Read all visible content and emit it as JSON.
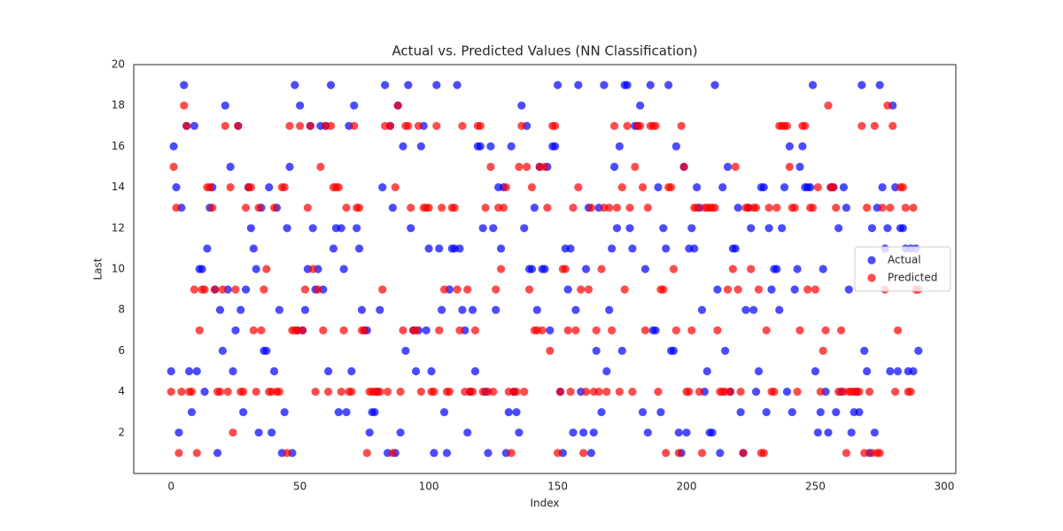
{
  "chart_data": {
    "type": "scatter",
    "title": "Actual vs. Predicted Values (NN Classification)",
    "x_label": "Index",
    "y_label": "Last",
    "xlim": [
      -14.5,
      304.5
    ],
    "ylim": [
      0,
      20
    ],
    "xticks": [
      0,
      50,
      100,
      150,
      200,
      250,
      300
    ],
    "yticks": [
      2,
      4,
      6,
      8,
      10,
      12,
      14,
      16,
      18,
      20
    ],
    "grid": false,
    "legend": "center right",
    "x": [
      0,
      1,
      2,
      3,
      4,
      5,
      6,
      7,
      8,
      9,
      10,
      11,
      12,
      13,
      14,
      15,
      16,
      17,
      18,
      19,
      20,
      21,
      22,
      23,
      24,
      25,
      26,
      27,
      28,
      29,
      30,
      31,
      32,
      33,
      34,
      35,
      36,
      37,
      38,
      39,
      40,
      41,
      42,
      43,
      44,
      45,
      46,
      47,
      48,
      49,
      50,
      51,
      52,
      53,
      54,
      55,
      56,
      57,
      58,
      59,
      60,
      61,
      62,
      63,
      64,
      65,
      66,
      67,
      68,
      69,
      70,
      71,
      72,
      73,
      74,
      75,
      76,
      77,
      78,
      79,
      80,
      81,
      82,
      83,
      84,
      85,
      86,
      87,
      88,
      89,
      90,
      91,
      92,
      93,
      94,
      95,
      96,
      97,
      98,
      99,
      100,
      101,
      102,
      103,
      104,
      105,
      106,
      107,
      108,
      109,
      110,
      111,
      112,
      113,
      114,
      115,
      116,
      117,
      118,
      119,
      120,
      121,
      122,
      123,
      124,
      125,
      126,
      127,
      128,
      129,
      130,
      131,
      132,
      133,
      134,
      135,
      136,
      137,
      138,
      139,
      140,
      141,
      142,
      143,
      144,
      145,
      146,
      147,
      148,
      149,
      150,
      151,
      152,
      153,
      154,
      155,
      156,
      157,
      158,
      159,
      160,
      161,
      162,
      163,
      164,
      165,
      166,
      167,
      168,
      169,
      170,
      171,
      172,
      173,
      174,
      175,
      176,
      177,
      178,
      179,
      180,
      181,
      182,
      183,
      184,
      185,
      186,
      187,
      188,
      189,
      190,
      191,
      192,
      193,
      194,
      195,
      196,
      197,
      198,
      199,
      200,
      201,
      202,
      203,
      204,
      205,
      206,
      207,
      208,
      209,
      210,
      211,
      212,
      213,
      214,
      215,
      216,
      217,
      218,
      219,
      220,
      221,
      222,
      223,
      224,
      225,
      226,
      227,
      228,
      229,
      230,
      231,
      232,
      233,
      234,
      235,
      236,
      237,
      238,
      239,
      240,
      241,
      242,
      243,
      244,
      245,
      246,
      247,
      248,
      249,
      250,
      251,
      252,
      253,
      254,
      255,
      256,
      257,
      258,
      259,
      260,
      261,
      262,
      263,
      264,
      265,
      266,
      267,
      268,
      269,
      270,
      271,
      272,
      273,
      274,
      275,
      276,
      277,
      278,
      279,
      280,
      281,
      282,
      283,
      284,
      285,
      286,
      287,
      288,
      289,
      290
    ],
    "series": [
      {
        "name": "Actual",
        "color": "#0000ff",
        "values": [
          5,
          16,
          14,
          2,
          13,
          19,
          17,
          5,
          3,
          17,
          5,
          10,
          10,
          4,
          11,
          13,
          14,
          9,
          1,
          8,
          6,
          18,
          9,
          15,
          5,
          7,
          17,
          8,
          3,
          9,
          14,
          12,
          11,
          10,
          2,
          13,
          6,
          6,
          14,
          2,
          5,
          13,
          8,
          1,
          3,
          12,
          15,
          1,
          19,
          7,
          18,
          7,
          8,
          10,
          17,
          12,
          9,
          10,
          17,
          9,
          17,
          5,
          19,
          11,
          12,
          3,
          12,
          10,
          3,
          17,
          5,
          18,
          12,
          11,
          8,
          7,
          7,
          2,
          3,
          3,
          4,
          8,
          14,
          19,
          1,
          17,
          13,
          1,
          18,
          2,
          16,
          6,
          19,
          12,
          7,
          5,
          7,
          16,
          17,
          7,
          11,
          5,
          1,
          19,
          11,
          8,
          3,
          1,
          9,
          11,
          11,
          19,
          11,
          8,
          7,
          2,
          4,
          8,
          5,
          16,
          16,
          12,
          4,
          1,
          16,
          12,
          8,
          14,
          11,
          14,
          1,
          3,
          16,
          4,
          3,
          2,
          18,
          12,
          17,
          10,
          10,
          13,
          8,
          15,
          10,
          10,
          15,
          7,
          16,
          16,
          19,
          4,
          1,
          11,
          9,
          11,
          2,
          8,
          19,
          4,
          2,
          10,
          13,
          1,
          2,
          6,
          13,
          3,
          19,
          5,
          8,
          11,
          15,
          12,
          16,
          6,
          19,
          19,
          12,
          11,
          17,
          17,
          18,
          3,
          10,
          2,
          19,
          7,
          7,
          14,
          3,
          12,
          11,
          19,
          6,
          6,
          16,
          2,
          1,
          15,
          2,
          11,
          12,
          11,
          14,
          13,
          8,
          4,
          5,
          2,
          2,
          19,
          9,
          1,
          14,
          6,
          15,
          4,
          11,
          11,
          13,
          3,
          1,
          8,
          13,
          12,
          8,
          4,
          5,
          14,
          14,
          3,
          12,
          9,
          10,
          10,
          8,
          12,
          14,
          4,
          16,
          3,
          9,
          10,
          15,
          16,
          14,
          14,
          14,
          19,
          5,
          2,
          3,
          10,
          4,
          2,
          14,
          14,
          3,
          12,
          4,
          14,
          13,
          9,
          2,
          3,
          4,
          3,
          19,
          6,
          5,
          1,
          12,
          2,
          13,
          19,
          14,
          11,
          12,
          5,
          18,
          14,
          5,
          12,
          12,
          11,
          5,
          11,
          5,
          11,
          6
        ]
      },
      {
        "name": "Predicted",
        "color": "#ff0000",
        "values": [
          4,
          15,
          13,
          1,
          4,
          18,
          17,
          4,
          4,
          9,
          1,
          7,
          9,
          9,
          14,
          14,
          13,
          9,
          4,
          4,
          9,
          17,
          4,
          14,
          2,
          9,
          17,
          4,
          4,
          13,
          14,
          14,
          7,
          4,
          13,
          7,
          9,
          10,
          4,
          4,
          13,
          4,
          4,
          14,
          14,
          1,
          17,
          7,
          7,
          7,
          17,
          7,
          9,
          13,
          17,
          10,
          4,
          9,
          15,
          7,
          17,
          4,
          17,
          14,
          14,
          14,
          4,
          7,
          13,
          4,
          4,
          17,
          13,
          13,
          7,
          7,
          1,
          4,
          4,
          4,
          4,
          4,
          9,
          17,
          4,
          17,
          1,
          14,
          18,
          4,
          7,
          17,
          17,
          13,
          7,
          7,
          17,
          4,
          13,
          13,
          13,
          4,
          4,
          17,
          7,
          13,
          9,
          4,
          4,
          13,
          13,
          9,
          7,
          17,
          4,
          9,
          4,
          4,
          7,
          17,
          17,
          4,
          13,
          4,
          15,
          4,
          9,
          13,
          10,
          13,
          14,
          4,
          1,
          4,
          4,
          15,
          17,
          4,
          15,
          9,
          14,
          7,
          7,
          15,
          7,
          15,
          13,
          6,
          17,
          17,
          1,
          4,
          10,
          10,
          7,
          4,
          13,
          7,
          14,
          9,
          1,
          4,
          9,
          13,
          4,
          7,
          4,
          10,
          13,
          4,
          13,
          7,
          17,
          13,
          4,
          14,
          9,
          17,
          13,
          4,
          15,
          17,
          17,
          14,
          7,
          13,
          17,
          17,
          17,
          4,
          9,
          9,
          1,
          14,
          14,
          10,
          7,
          1,
          17,
          15,
          4,
          4,
          7,
          13,
          13,
          4,
          1,
          13,
          13,
          13,
          13,
          13,
          7,
          4,
          4,
          4,
          9,
          4,
          10,
          15,
          9,
          4,
          1,
          13,
          13,
          10,
          13,
          13,
          9,
          1,
          1,
          7,
          13,
          4,
          4,
          13,
          17,
          17,
          17,
          17,
          15,
          13,
          13,
          4,
          7,
          17,
          17,
          9,
          13,
          13,
          9,
          14,
          4,
          6,
          7,
          18,
          14,
          14,
          13,
          4,
          7,
          4,
          1,
          4,
          4,
          4,
          4,
          4,
          17,
          1,
          13,
          4,
          1,
          17,
          1,
          1,
          13,
          9,
          18,
          13,
          17,
          4,
          7,
          14,
          14,
          13,
          4,
          4,
          13,
          9,
          9
        ]
      }
    ]
  }
}
